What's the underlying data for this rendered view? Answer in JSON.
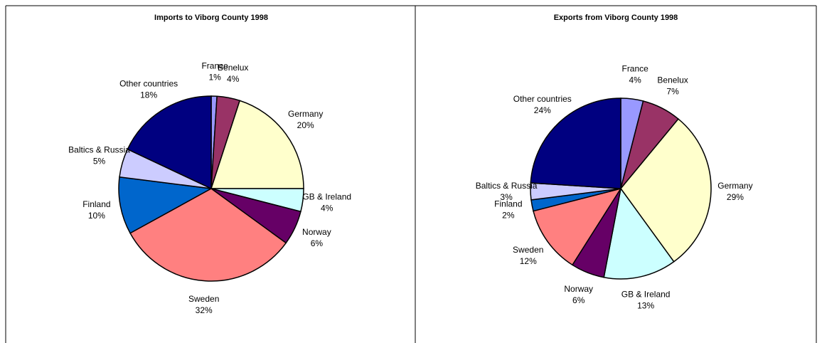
{
  "chart_data": [
    {
      "type": "pie",
      "title": "Imports to Viborg County 1998",
      "categories": [
        "France",
        "Benelux",
        "Germany",
        "GB & Ireland",
        "Norway",
        "Sweden",
        "Finland",
        "Baltics & Russia",
        "Other countries"
      ],
      "values": [
        1,
        4,
        20,
        4,
        6,
        32,
        10,
        5,
        18
      ],
      "value_labels": [
        "1%",
        "4%",
        "20%",
        "4%",
        "6%",
        "32%",
        "10%",
        "5%",
        "18%"
      ],
      "colors": [
        "#9999ff",
        "#993366",
        "#ffffcc",
        "#ccffff",
        "#660066",
        "#ff8080",
        "#0066cc",
        "#ccccff",
        "#000080"
      ]
    },
    {
      "type": "pie",
      "title": "Exports from Viborg County 1998",
      "categories": [
        "France",
        "Benelux",
        "Germany",
        "GB & Ireland",
        "Norway",
        "Sweden",
        "Finland",
        "Baltics & Russia",
        "Other countries"
      ],
      "values": [
        4,
        7,
        29,
        13,
        6,
        12,
        2,
        3,
        24
      ],
      "value_labels": [
        "4%",
        "7%",
        "29%",
        "13%",
        "6%",
        "12%",
        "2%",
        "3%",
        "24%"
      ],
      "colors": [
        "#9999ff",
        "#993366",
        "#ffffcc",
        "#ccffff",
        "#660066",
        "#ff8080",
        "#0066cc",
        "#ccccff",
        "#000080"
      ]
    }
  ]
}
